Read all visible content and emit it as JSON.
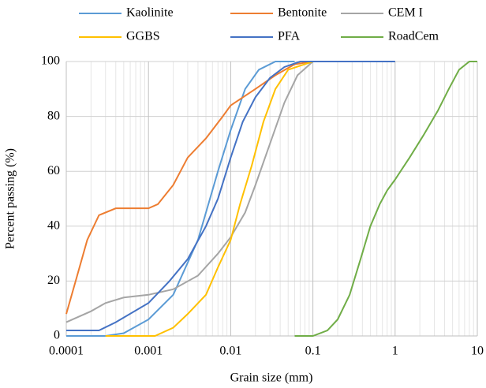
{
  "chart_data": {
    "type": "line",
    "x_label": "Grain size (mm)",
    "y_label": "Percent passing (%)",
    "xscale": "log",
    "xlim": [
      0.0001,
      10
    ],
    "xticks": [
      0.0001,
      0.001,
      0.01,
      0.1,
      1,
      10
    ],
    "ylim": [
      0,
      100
    ],
    "yticks": [
      0,
      20,
      40,
      60,
      80,
      100
    ],
    "grid": true,
    "minor_grid": true,
    "legend": "top",
    "series": [
      {
        "name": "Kaolinite",
        "color": "#5B9BD5",
        "x": [
          0.0001,
          0.0003,
          0.0005,
          0.001,
          0.002,
          0.004,
          0.007,
          0.01,
          0.015,
          0.022,
          0.035,
          0.06
        ],
        "values": [
          0,
          0,
          1,
          6,
          15,
          35,
          60,
          75,
          90,
          97,
          100,
          100
        ]
      },
      {
        "name": "Bentonite",
        "color": "#ED7D31",
        "x": [
          0.0001,
          0.00013,
          0.00018,
          0.00025,
          0.0004,
          0.001,
          0.0013,
          0.002,
          0.003,
          0.005,
          0.008,
          0.01,
          0.02,
          0.035,
          0.06,
          0.1
        ],
        "values": [
          8,
          20,
          35,
          44,
          46.5,
          46.5,
          48,
          55,
          65,
          72,
          80,
          84,
          90,
          95,
          99,
          100
        ]
      },
      {
        "name": "CEM I",
        "color": "#A5A5A5",
        "x": [
          0.0001,
          0.0002,
          0.0003,
          0.0005,
          0.001,
          0.002,
          0.004,
          0.007,
          0.01,
          0.015,
          0.02,
          0.03,
          0.045,
          0.065,
          0.1,
          1
        ],
        "values": [
          5,
          9,
          12,
          14,
          15,
          17,
          22,
          30,
          36,
          45,
          55,
          70,
          85,
          95,
          100,
          100
        ]
      },
      {
        "name": "GGBS",
        "color": "#FFC000",
        "x": [
          0.0003,
          0.0012,
          0.002,
          0.003,
          0.005,
          0.007,
          0.01,
          0.013,
          0.018,
          0.025,
          0.035,
          0.05,
          0.1
        ],
        "values": [
          0,
          0,
          3,
          8,
          15,
          25,
          35,
          48,
          62,
          78,
          90,
          97,
          100
        ]
      },
      {
        "name": "PFA",
        "color": "#4472C4",
        "x": [
          0.0001,
          0.00025,
          0.0004,
          0.001,
          0.0018,
          0.003,
          0.005,
          0.007,
          0.01,
          0.014,
          0.02,
          0.03,
          0.045,
          0.07,
          1
        ],
        "values": [
          2,
          2,
          5,
          12,
          20,
          28,
          40,
          50,
          65,
          78,
          87,
          94,
          98,
          100,
          100
        ]
      },
      {
        "name": "RoadCem",
        "color": "#70AD47",
        "x": [
          0.06,
          0.1,
          0.15,
          0.2,
          0.28,
          0.38,
          0.5,
          0.65,
          0.8,
          1,
          1.5,
          2.2,
          3.3,
          4.5,
          6,
          8,
          10
        ],
        "values": [
          0,
          0,
          2,
          6,
          15,
          28,
          40,
          48,
          53,
          57,
          65,
          73,
          82,
          90,
          97,
          100,
          100
        ]
      }
    ]
  }
}
